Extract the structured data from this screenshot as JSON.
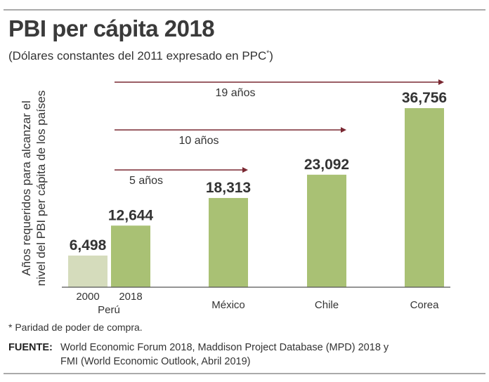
{
  "title": "PBI per cápita 2018",
  "subtitle": "(Dólares constantes del 2011 expresado en PPC",
  "subtitle_mark": "*",
  "chart_data": {
    "type": "bar",
    "ylabel_lines": [
      "Años requeridos para alcanzar el",
      "nivel del PBI per cápita de los países"
    ],
    "bars": [
      {
        "label": "2000",
        "group": "Perú",
        "value": 6498,
        "value_label": "6,498",
        "color": "#d5dcbc"
      },
      {
        "label": "2018",
        "group": "Perú",
        "value": 12644,
        "value_label": "12,644",
        "color": "#a9c174"
      },
      {
        "label": "México",
        "value": 18313,
        "value_label": "18,313",
        "color": "#a9c174"
      },
      {
        "label": "Chile",
        "value": 23092,
        "value_label": "23,092",
        "color": "#a9c174"
      },
      {
        "label": "Corea",
        "value": 36756,
        "value_label": "36,756",
        "color": "#a9c174"
      }
    ],
    "group_label": "Perú",
    "arrows": [
      {
        "label": "19 años",
        "target": "Corea"
      },
      {
        "label": "10 años",
        "target": "Chile"
      },
      {
        "label": "5 años",
        "target": "México"
      }
    ],
    "arrow_color": "#7a2832",
    "ylim": [
      0,
      36756
    ]
  },
  "note": "* Paridad de poder de compra.",
  "source_label": "FUENTE:",
  "source_lines": [
    "World Economic Forum 2018, Maddison Project Database (MPD) 2018 y",
    "FMI (World Economic Outlook, Abril 2019)"
  ]
}
